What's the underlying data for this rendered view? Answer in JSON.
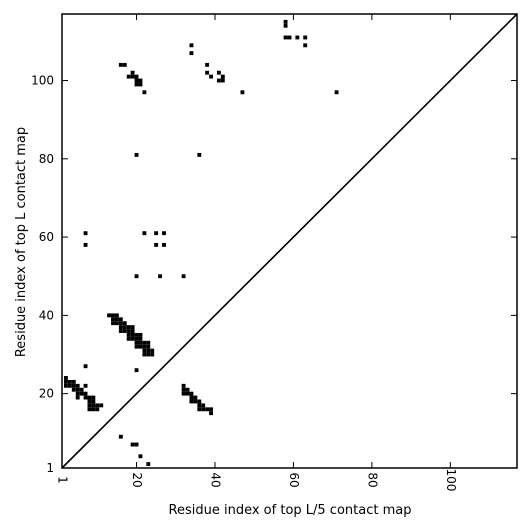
{
  "chart_data": {
    "type": "scatter",
    "xlabel": "Residue index of top L/5 contact map",
    "ylabel": "Residue index of top L contact map",
    "xlim": [
      1,
      117
    ],
    "ylim": [
      1,
      117
    ],
    "xticks": [
      {
        "value": 1,
        "label": "1"
      },
      {
        "value": 20,
        "label": "20"
      },
      {
        "value": 40,
        "label": "40"
      },
      {
        "value": 60,
        "label": "60"
      },
      {
        "value": 80,
        "label": "80"
      },
      {
        "value": 100,
        "label": "100"
      }
    ],
    "yticks": [
      {
        "value": 1,
        "label": "1"
      },
      {
        "value": 20,
        "label": "20"
      },
      {
        "value": 40,
        "label": "40"
      },
      {
        "value": 60,
        "label": "60"
      },
      {
        "value": 80,
        "label": "80"
      },
      {
        "value": 100,
        "label": "100"
      }
    ],
    "diagonal": true,
    "marker_color": "#000000",
    "points": [
      [
        2,
        24
      ],
      [
        2,
        23
      ],
      [
        2,
        22
      ],
      [
        3,
        23
      ],
      [
        3,
        22
      ],
      [
        4,
        23
      ],
      [
        4,
        22
      ],
      [
        4,
        21
      ],
      [
        5,
        22
      ],
      [
        5,
        21
      ],
      [
        5,
        20
      ],
      [
        5,
        19
      ],
      [
        6,
        21
      ],
      [
        6,
        20
      ],
      [
        7,
        20
      ],
      [
        7,
        19
      ],
      [
        7,
        22
      ],
      [
        7,
        27
      ],
      [
        8,
        19
      ],
      [
        8,
        18
      ],
      [
        8,
        17
      ],
      [
        8,
        16
      ],
      [
        9,
        19
      ],
      [
        9,
        18
      ],
      [
        9,
        17
      ],
      [
        9,
        16
      ],
      [
        10,
        17
      ],
      [
        10,
        16
      ],
      [
        11,
        17
      ],
      [
        13,
        40
      ],
      [
        14,
        40
      ],
      [
        14,
        39
      ],
      [
        14,
        38
      ],
      [
        15,
        40
      ],
      [
        15,
        39
      ],
      [
        15,
        38
      ],
      [
        16,
        39
      ],
      [
        16,
        38
      ],
      [
        16,
        37
      ],
      [
        16,
        36
      ],
      [
        17,
        38
      ],
      [
        17,
        37
      ],
      [
        17,
        36
      ],
      [
        18,
        37
      ],
      [
        18,
        36
      ],
      [
        18,
        35
      ],
      [
        18,
        34
      ],
      [
        19,
        37
      ],
      [
        19,
        36
      ],
      [
        19,
        35
      ],
      [
        19,
        34
      ],
      [
        20,
        35
      ],
      [
        20,
        34
      ],
      [
        20,
        33
      ],
      [
        20,
        32
      ],
      [
        21,
        35
      ],
      [
        21,
        34
      ],
      [
        21,
        33
      ],
      [
        21,
        32
      ],
      [
        22,
        33
      ],
      [
        22,
        32
      ],
      [
        22,
        31
      ],
      [
        22,
        30
      ],
      [
        23,
        33
      ],
      [
        23,
        32
      ],
      [
        23,
        31
      ],
      [
        23,
        30
      ],
      [
        24,
        31
      ],
      [
        24,
        30
      ],
      [
        20,
        26
      ],
      [
        20,
        50
      ],
      [
        26,
        50
      ],
      [
        32,
        50
      ],
      [
        20,
        81
      ],
      [
        36,
        81
      ],
      [
        7,
        61
      ],
      [
        7,
        58
      ],
      [
        22,
        61
      ],
      [
        25,
        61
      ],
      [
        27,
        61
      ],
      [
        25,
        58
      ],
      [
        27,
        58
      ],
      [
        32,
        22
      ],
      [
        32,
        21
      ],
      [
        32,
        20
      ],
      [
        33,
        21
      ],
      [
        33,
        20
      ],
      [
        34,
        20
      ],
      [
        34,
        19
      ],
      [
        34,
        18
      ],
      [
        35,
        19
      ],
      [
        35,
        18
      ],
      [
        36,
        18
      ],
      [
        36,
        17
      ],
      [
        36,
        16
      ],
      [
        37,
        17
      ],
      [
        37,
        16
      ],
      [
        38,
        16
      ],
      [
        39,
        16
      ],
      [
        39,
        15
      ],
      [
        16,
        9
      ],
      [
        19,
        7
      ],
      [
        20,
        7
      ],
      [
        21,
        4
      ],
      [
        23,
        2
      ],
      [
        16,
        104
      ],
      [
        17,
        104
      ],
      [
        18,
        101
      ],
      [
        19,
        102
      ],
      [
        19,
        101
      ],
      [
        20,
        101
      ],
      [
        20,
        100
      ],
      [
        20,
        99
      ],
      [
        21,
        100
      ],
      [
        21,
        99
      ],
      [
        22,
        97
      ],
      [
        34,
        109
      ],
      [
        34,
        107
      ],
      [
        38,
        104
      ],
      [
        38,
        102
      ],
      [
        39,
        101
      ],
      [
        41,
        102
      ],
      [
        41,
        100
      ],
      [
        42,
        101
      ],
      [
        42,
        100
      ],
      [
        47,
        97
      ],
      [
        58,
        115
      ],
      [
        58,
        114
      ],
      [
        58,
        111
      ],
      [
        59,
        111
      ],
      [
        61,
        111
      ],
      [
        63,
        111
      ],
      [
        63,
        109
      ],
      [
        71,
        97
      ]
    ]
  }
}
